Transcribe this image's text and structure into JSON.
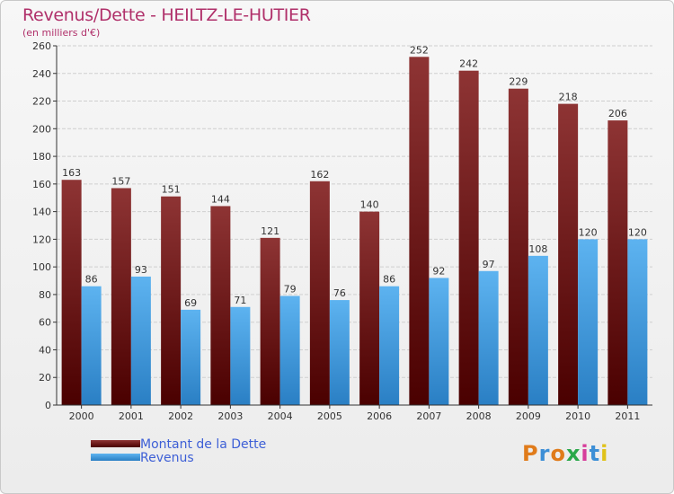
{
  "header": {
    "title": "Revenus/Dette - HEILTZ-LE-HUTIER",
    "subtitle": "(en milliers d'€)"
  },
  "legend": {
    "items": [
      {
        "label": "Montant de la Dette",
        "color": "#7a1b1b"
      },
      {
        "label": "Revenus",
        "color": "#3d9be0"
      }
    ]
  },
  "logo": {
    "text": "Proxiti",
    "colors": [
      "#e07b1a",
      "#3d8fd6",
      "#e07b1a",
      "#2aa84a",
      "#d63d9b",
      "#3d8fd6",
      "#e0c21a"
    ]
  },
  "chart_data": {
    "type": "bar",
    "title": "Revenus/Dette - HEILTZ-LE-HUTIER",
    "ylabel": "(en milliers d'€)",
    "xlabel": "",
    "categories": [
      "2000",
      "2001",
      "2002",
      "2003",
      "2004",
      "2005",
      "2006",
      "2007",
      "2008",
      "2009",
      "2010",
      "2011"
    ],
    "series": [
      {
        "name": "Montant de la Dette",
        "values": [
          163,
          157,
          151,
          144,
          121,
          162,
          140,
          252,
          242,
          229,
          218,
          206
        ],
        "color": "#7a1b1b"
      },
      {
        "name": "Revenus",
        "values": [
          86,
          93,
          69,
          71,
          79,
          76,
          86,
          92,
          97,
          108,
          120,
          120
        ],
        "color": "#3d9be0"
      }
    ],
    "ylim": [
      0,
      260
    ],
    "yticks": [
      0,
      20,
      40,
      60,
      80,
      100,
      120,
      140,
      160,
      180,
      200,
      220,
      240,
      260
    ],
    "grid": true,
    "legend_position": "bottom-left"
  }
}
